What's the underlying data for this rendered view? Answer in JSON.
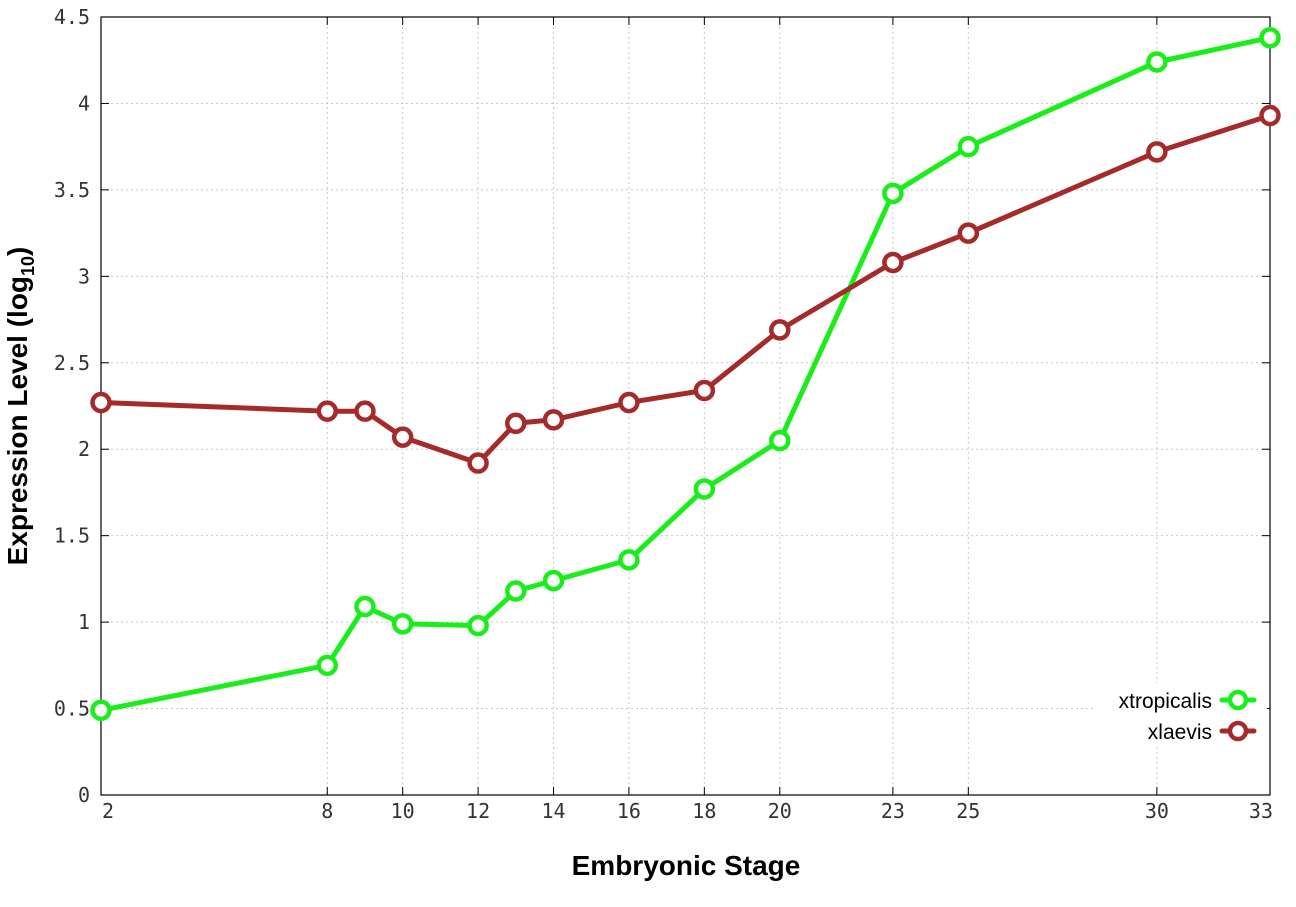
{
  "chart_data": {
    "type": "line",
    "title": "",
    "xlabel": "Embryonic Stage",
    "ylabel_main": "Expression Level (log",
    "ylabel_sub": "10",
    "ylabel_close": ")",
    "x": [
      2,
      8,
      9,
      10,
      12,
      13,
      14,
      16,
      18,
      20,
      23,
      25,
      30,
      33
    ],
    "x_tick_labels": [
      "2",
      "8",
      "10",
      "12",
      "14",
      "16",
      "18",
      "20",
      "23",
      "25",
      "30",
      "33"
    ],
    "x_tick_values": [
      2,
      8,
      10,
      12,
      14,
      16,
      18,
      20,
      23,
      25,
      30,
      33
    ],
    "xlim": [
      2,
      33
    ],
    "y_tick_labels": [
      "0",
      "0.5",
      "1",
      "1.5",
      "2",
      "2.5",
      "3",
      "3.5",
      "4",
      "4.5"
    ],
    "y_tick_values": [
      0,
      0.5,
      1,
      1.5,
      2,
      2.5,
      3,
      3.5,
      4,
      4.5
    ],
    "ylim": [
      0,
      4.5
    ],
    "grid": true,
    "legend_position": "bottom-right",
    "series": [
      {
        "name": "xtropicalis",
        "color": "#1aee1a",
        "marker": "circle-open",
        "values": [
          0.49,
          0.75,
          1.09,
          0.99,
          0.98,
          1.18,
          1.24,
          1.36,
          1.77,
          2.05,
          3.48,
          3.75,
          4.24,
          4.38
        ]
      },
      {
        "name": "xlaevis",
        "color": "#a52a2a",
        "marker": "circle-open",
        "values": [
          2.27,
          2.22,
          2.22,
          2.07,
          1.92,
          2.15,
          2.17,
          2.27,
          2.34,
          2.69,
          3.08,
          3.25,
          3.72,
          3.93
        ]
      }
    ]
  }
}
